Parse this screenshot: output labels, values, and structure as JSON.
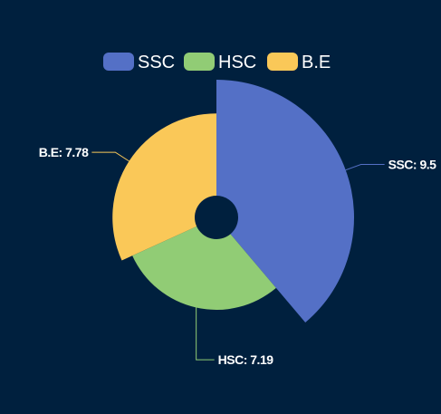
{
  "colors": {
    "background": "#00203e",
    "SSC": "#5470c6",
    "HSC": "#91cc75",
    "B.E": "#fac858"
  },
  "legend": {
    "items": [
      "SSC",
      "HSC",
      "B.E"
    ],
    "placement": "top-center"
  },
  "chart_data": {
    "type": "pie",
    "subtype": "rose-radius",
    "categories": [
      "SSC",
      "HSC",
      "B.E"
    ],
    "values": [
      9.5,
      7.19,
      7.78
    ],
    "labels": [
      "SSC: 9.5",
      "HSC: 7.19",
      "B.E: 7.78"
    ],
    "series": [
      {
        "values": [
          9.5,
          7.19,
          7.78
        ]
      }
    ]
  }
}
